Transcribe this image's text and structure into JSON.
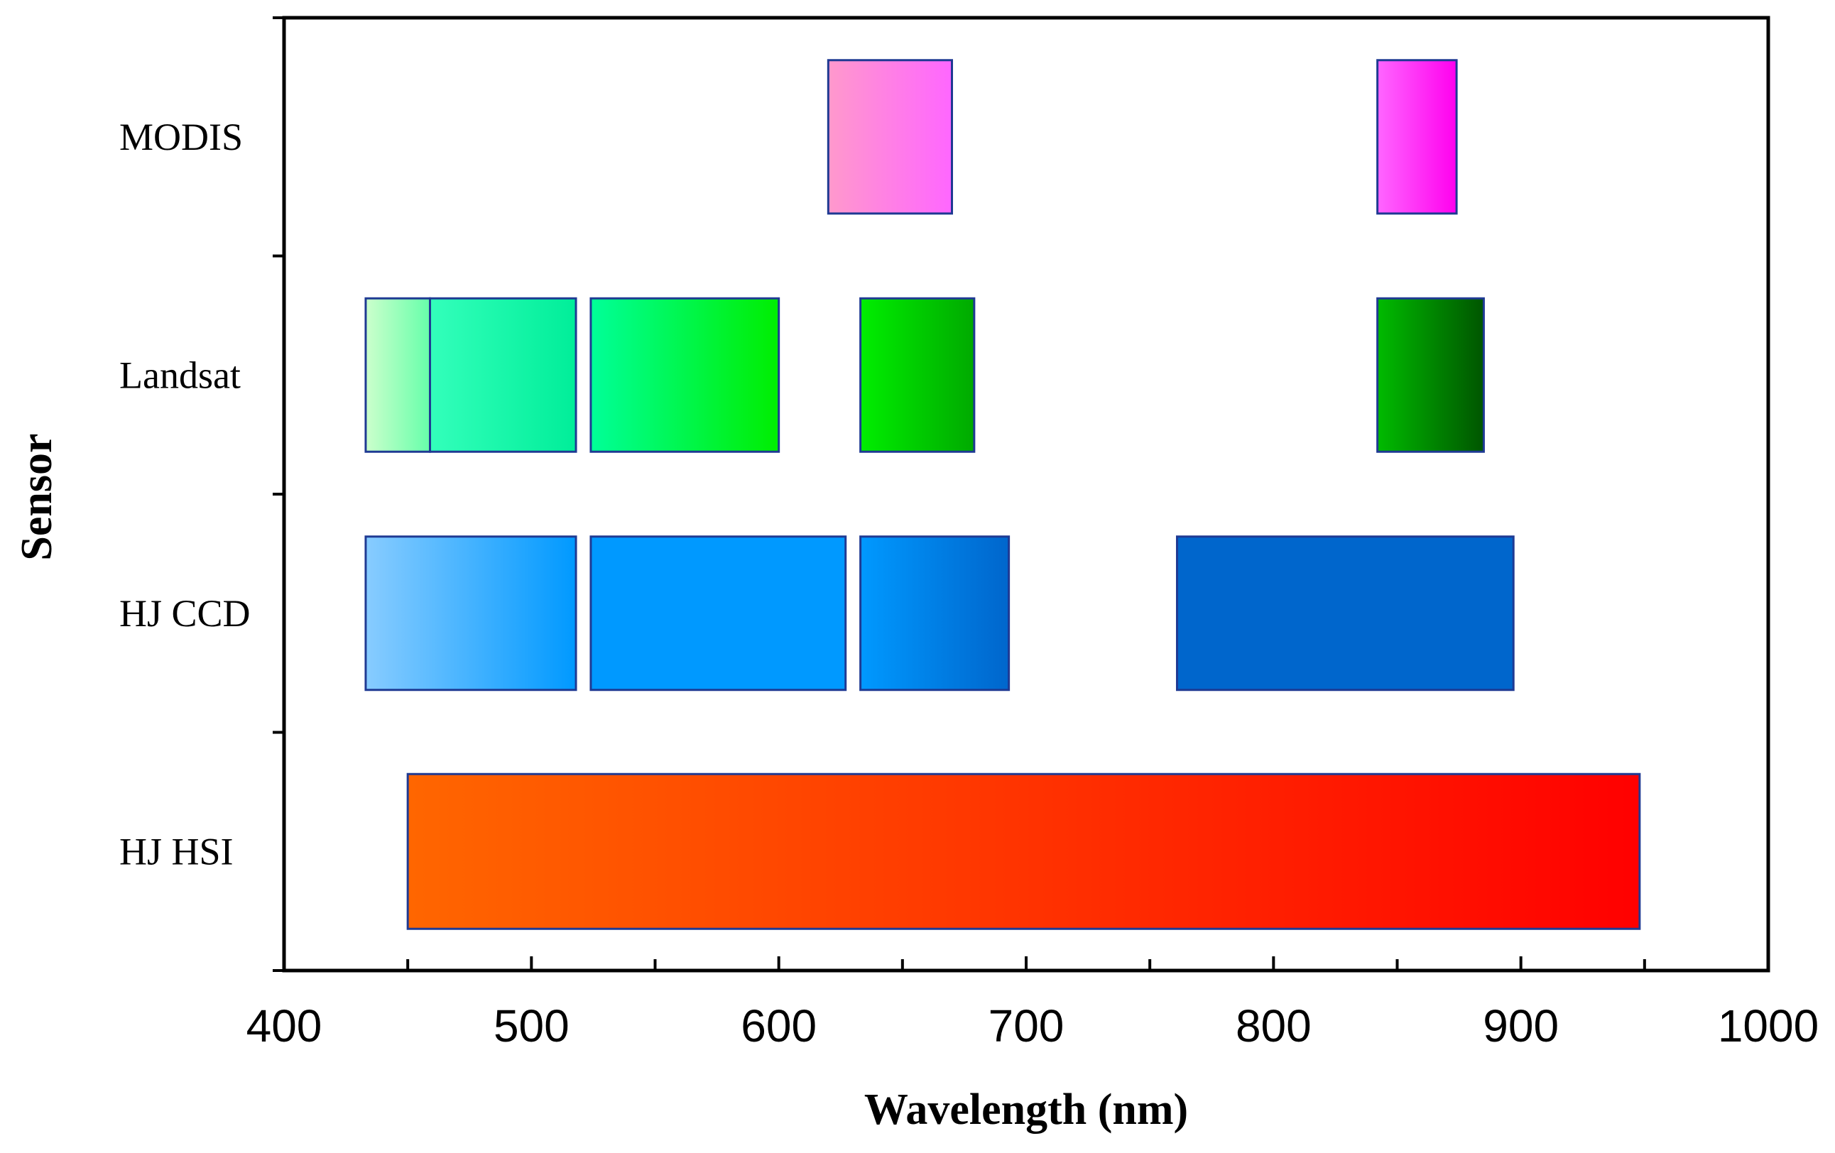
{
  "chart_data": {
    "type": "bar",
    "orientation": "horizontal-range",
    "title": "",
    "xlabel": "Wavelength (nm)",
    "ylabel": "Sensor",
    "xlim": [
      400,
      1000
    ],
    "xticks": [
      400,
      500,
      600,
      700,
      800,
      900,
      1000
    ],
    "grid": false,
    "categories": [
      "MODIS",
      "Landsat",
      "HJ CCD",
      "HJ HSI"
    ],
    "series": [
      {
        "name": "MODIS",
        "bands": [
          {
            "start": 620,
            "end": 670,
            "color_start": "#ff99cc",
            "color_end": "#ff66ff"
          },
          {
            "start": 842,
            "end": 874,
            "color_start": "#ff66ff",
            "color_end": "#ff00ee"
          }
        ]
      },
      {
        "name": "Landsat",
        "bands": [
          {
            "start": 433,
            "end": 459,
            "color_start": "#ccffcc",
            "color_end": "#66ffaa"
          },
          {
            "start": 459,
            "end": 518,
            "color_start": "#33ffbb",
            "color_end": "#00ee99"
          },
          {
            "start": 524,
            "end": 600,
            "color_start": "#00ff99",
            "color_end": "#00ee00"
          },
          {
            "start": 633,
            "end": 679,
            "color_start": "#00ee00",
            "color_end": "#00aa00"
          },
          {
            "start": 842,
            "end": 885,
            "color_start": "#00bb00",
            "color_end": "#005500"
          }
        ]
      },
      {
        "name": "HJ CCD",
        "bands": [
          {
            "start": 433,
            "end": 518,
            "color_start": "#88ccff",
            "color_end": "#0099ff"
          },
          {
            "start": 524,
            "end": 627,
            "color_start": "#0099ff",
            "color_end": "#0099ff"
          },
          {
            "start": 633,
            "end": 693,
            "color_start": "#0099ff",
            "color_end": "#0066cc"
          },
          {
            "start": 761,
            "end": 897,
            "color_start": "#0066cc",
            "color_end": "#0066cc"
          }
        ]
      },
      {
        "name": "HJ HSI",
        "bands": [
          {
            "start": 450,
            "end": 948,
            "color_start": "#ff6600",
            "color_end": "#ff0000"
          }
        ]
      }
    ],
    "border_color": "#1f3a93"
  }
}
